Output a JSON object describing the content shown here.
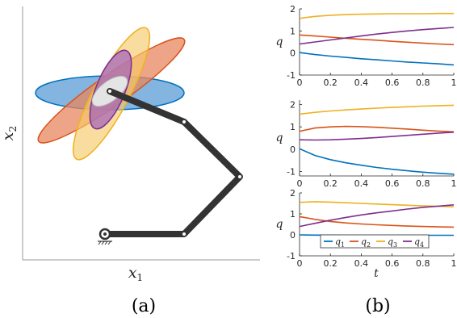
{
  "colors": {
    "q1": "#0072BD",
    "q2": "#D95319",
    "q3": "#EDB120",
    "q4": "#7E2F8E",
    "link": "#333333",
    "gray_ellipse": "#e4e4e4"
  },
  "panel_a": {
    "caption": "(a)",
    "xlabel_base": "x",
    "xlabel_sub": "1",
    "ylabel_base": "x",
    "ylabel_sub": "2"
  },
  "panel_b": {
    "caption": "(b)",
    "ylabel": "q",
    "xlabel": "t",
    "legend": [
      {
        "base": "q",
        "sub": "1",
        "color_key": "q1"
      },
      {
        "base": "q",
        "sub": "2",
        "color_key": "q2"
      },
      {
        "base": "q",
        "sub": "3",
        "color_key": "q3"
      },
      {
        "base": "q",
        "sub": "4",
        "color_key": "q4"
      }
    ]
  },
  "chart_data": [
    {
      "type": "line",
      "title": "",
      "xlabel": "",
      "ylabel": "q",
      "xlim": [
        0,
        1
      ],
      "ylim": [
        -1,
        2
      ],
      "xticks": [
        "0",
        "0.2",
        "0.4",
        "0.6",
        "0.8",
        "1"
      ],
      "yticks": [
        "-1",
        "0",
        "1",
        "2"
      ],
      "x": [
        0,
        0.1,
        0.2,
        0.3,
        0.4,
        0.5,
        0.6,
        0.7,
        0.8,
        0.9,
        1.0
      ],
      "series": [
        {
          "name": "q1",
          "values": [
            0.02,
            -0.07,
            -0.14,
            -0.2,
            -0.26,
            -0.31,
            -0.36,
            -0.41,
            -0.45,
            -0.49,
            -0.54
          ]
        },
        {
          "name": "q2",
          "values": [
            0.82,
            0.77,
            0.72,
            0.67,
            0.62,
            0.58,
            0.53,
            0.49,
            0.45,
            0.41,
            0.38
          ]
        },
        {
          "name": "q3",
          "values": [
            1.57,
            1.66,
            1.71,
            1.74,
            1.76,
            1.77,
            1.78,
            1.78,
            1.78,
            1.79,
            1.79
          ]
        },
        {
          "name": "q4",
          "values": [
            0.41,
            0.5,
            0.59,
            0.68,
            0.77,
            0.86,
            0.93,
            1.0,
            1.06,
            1.11,
            1.16
          ]
        }
      ]
    },
    {
      "type": "line",
      "title": "",
      "xlabel": "",
      "ylabel": "q",
      "xlim": [
        0,
        1
      ],
      "ylim": [
        -1.2,
        2.2
      ],
      "xticks": [
        "0",
        "0.2",
        "0.4",
        "0.6",
        "0.8",
        "1"
      ],
      "yticks": [
        "-1",
        "0",
        "1",
        "2"
      ],
      "x": [
        0,
        0.1,
        0.2,
        0.3,
        0.4,
        0.5,
        0.6,
        0.7,
        0.8,
        0.9,
        1.0
      ],
      "series": [
        {
          "name": "q1",
          "values": [
            0.02,
            -0.28,
            -0.47,
            -0.61,
            -0.72,
            -0.82,
            -0.9,
            -0.97,
            -1.03,
            -1.08,
            -1.12
          ]
        },
        {
          "name": "q2",
          "values": [
            0.8,
            0.95,
            1.0,
            1.02,
            1.01,
            0.98,
            0.94,
            0.9,
            0.85,
            0.81,
            0.78
          ]
        },
        {
          "name": "q3",
          "values": [
            1.57,
            1.65,
            1.71,
            1.76,
            1.8,
            1.84,
            1.87,
            1.9,
            1.93,
            1.95,
            1.97
          ]
        },
        {
          "name": "q4",
          "values": [
            0.42,
            0.41,
            0.42,
            0.45,
            0.48,
            0.52,
            0.57,
            0.62,
            0.67,
            0.72,
            0.76
          ]
        }
      ]
    },
    {
      "type": "line",
      "title": "",
      "xlabel": "t",
      "ylabel": "q",
      "xlim": [
        0,
        1
      ],
      "ylim": [
        -1,
        2
      ],
      "xticks": [
        "0",
        "0.2",
        "0.4",
        "0.6",
        "0.8",
        "1"
      ],
      "yticks": [
        "-1",
        "0",
        "1",
        "2"
      ],
      "x": [
        0,
        0.1,
        0.2,
        0.3,
        0.4,
        0.5,
        0.6,
        0.7,
        0.8,
        0.9,
        1.0
      ],
      "series": [
        {
          "name": "q1",
          "values": [
            0.0,
            -0.01,
            -0.01,
            -0.02,
            -0.02,
            -0.02,
            -0.02,
            -0.02,
            -0.02,
            -0.02,
            -0.02
          ]
        },
        {
          "name": "q2",
          "values": [
            0.87,
            0.74,
            0.64,
            0.57,
            0.52,
            0.48,
            0.45,
            0.42,
            0.4,
            0.38,
            0.37
          ]
        },
        {
          "name": "q3",
          "values": [
            1.55,
            1.58,
            1.56,
            1.53,
            1.5,
            1.47,
            1.44,
            1.41,
            1.38,
            1.36,
            1.34
          ]
        },
        {
          "name": "q4",
          "values": [
            0.4,
            0.55,
            0.7,
            0.83,
            0.95,
            1.05,
            1.14,
            1.23,
            1.31,
            1.37,
            1.43
          ]
        }
      ]
    }
  ]
}
